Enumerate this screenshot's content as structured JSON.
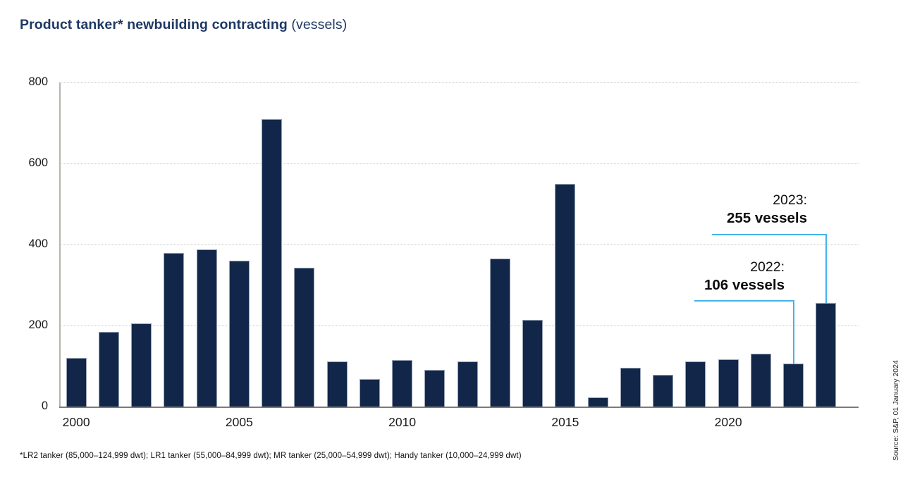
{
  "title": {
    "main": "Product tanker* newbuilding contracting",
    "suffix": " (vessels)"
  },
  "chart_data": {
    "type": "bar",
    "categories": [
      2000,
      2001,
      2002,
      2003,
      2004,
      2005,
      2006,
      2007,
      2008,
      2009,
      2010,
      2011,
      2012,
      2013,
      2014,
      2015,
      2016,
      2017,
      2018,
      2019,
      2020,
      2021,
      2022,
      2023
    ],
    "values": [
      120,
      185,
      205,
      380,
      387,
      360,
      710,
      343,
      112,
      67,
      115,
      90,
      111,
      365,
      214,
      550,
      22,
      96,
      79,
      112,
      116,
      131,
      106,
      255
    ],
    "title": "Product tanker* newbuilding contracting (vessels)",
    "xlabel": "",
    "ylabel": "",
    "ylim": [
      0,
      800
    ],
    "yticks": [
      0,
      200,
      400,
      600,
      800
    ],
    "xticks": [
      2000,
      2005,
      2010,
      2015,
      2020
    ],
    "grid": "horizontal-dotted",
    "legend": "none",
    "bar_color": "#112649"
  },
  "annotations": [
    {
      "id": "2023",
      "year_label": "2023:",
      "value_label": "255 vessels",
      "target_year": 2023,
      "target_value": 255
    },
    {
      "id": "2022",
      "year_label": "2022:",
      "value_label": "106 vessels",
      "target_year": 2022,
      "target_value": 106
    }
  ],
  "footnote": "*LR2 tanker (85,000–124,999 dwt); LR1 tanker (55,000–84,999 dwt); MR tanker (25,000–54,999 dwt); Handy tanker (10,000–24,999 dwt)",
  "source": "Source: S&P, 01 January 2024",
  "colors": {
    "bar": "#112649",
    "title": "#1f3864",
    "callout_line": "#45b3e6",
    "gridline": "#c7c5c3",
    "axis": "#7d7b78"
  }
}
